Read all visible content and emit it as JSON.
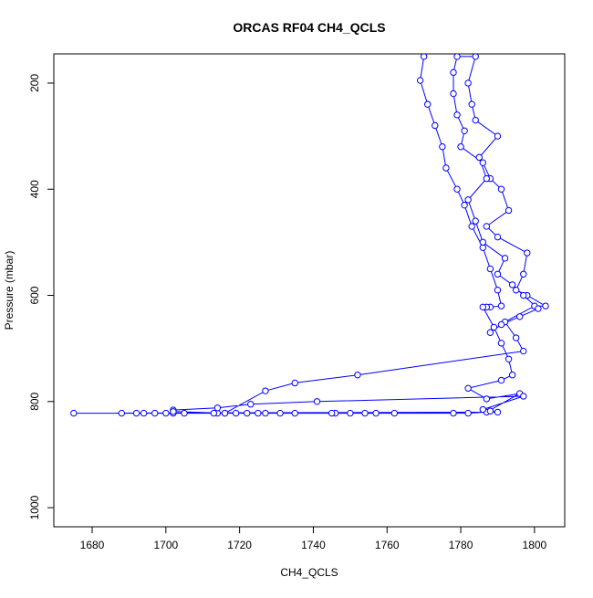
{
  "chart_data": {
    "type": "line",
    "title": "ORCAS RF04 CH4_QCLS",
    "xlabel": "CH4_QCLS",
    "ylabel": "Pressure (mbar)",
    "color": "#0000ff",
    "x": [
      1770,
      1769,
      1771,
      1773,
      1775,
      1776,
      1779,
      1781,
      1783,
      1786,
      1788,
      1790,
      1791,
      1788,
      1787,
      1786,
      1789,
      1791,
      1793,
      1794,
      1791,
      1782,
      1787,
      1796,
      1787,
      1782,
      1778,
      1762,
      1757,
      1754,
      1750,
      1746,
      1745,
      1735,
      1731,
      1727,
      1725,
      1722,
      1719,
      1716,
      1714,
      1713,
      1705,
      1702,
      1700,
      1697,
      1694,
      1692,
      1688,
      1675,
      1790,
      1788,
      1786,
      1797,
      1741,
      1723,
      1714,
      1702,
      1702,
      1716,
      1727,
      1735,
      1752,
      1797,
      1795,
      1792,
      1800,
      1803,
      1798,
      1795,
      1797,
      1798,
      1790,
      1787,
      1793,
      1791,
      1788,
      1786,
      1780,
      1781,
      1779,
      1778,
      1778,
      1779,
      1784,
      1782,
      1783,
      1784,
      1790,
      1785,
      1787,
      1782,
      1784,
      1786,
      1792,
      1790,
      1794,
      1797,
      1801,
      1796,
      1791,
      1788
    ],
    "values": [
      150,
      195,
      240,
      280,
      320,
      360,
      400,
      430,
      470,
      510,
      550,
      590,
      620,
      622,
      622,
      622,
      660,
      690,
      720,
      750,
      760,
      775,
      795,
      785,
      820,
      822,
      822,
      822,
      822,
      822,
      822,
      822,
      822,
      822,
      822,
      822,
      822,
      822,
      822,
      822,
      822,
      822,
      822,
      822,
      822,
      822,
      822,
      822,
      822,
      822,
      820,
      818,
      815,
      790,
      800,
      805,
      812,
      816,
      819,
      822,
      780,
      765,
      750,
      705,
      680,
      650,
      620,
      620,
      600,
      590,
      560,
      520,
      490,
      470,
      440,
      400,
      380,
      350,
      320,
      290,
      260,
      220,
      180,
      150,
      150,
      200,
      240,
      270,
      300,
      340,
      380,
      420,
      460,
      500,
      530,
      560,
      580,
      600,
      625,
      640,
      655,
      670
    ],
    "xlim": [
      1669.6,
      1808.2
    ],
    "ylim": [
      1036,
      145
    ],
    "xticks": [
      1680,
      1700,
      1720,
      1740,
      1760,
      1780,
      1800
    ],
    "yticks": [
      200,
      400,
      600,
      800,
      1000
    ]
  }
}
